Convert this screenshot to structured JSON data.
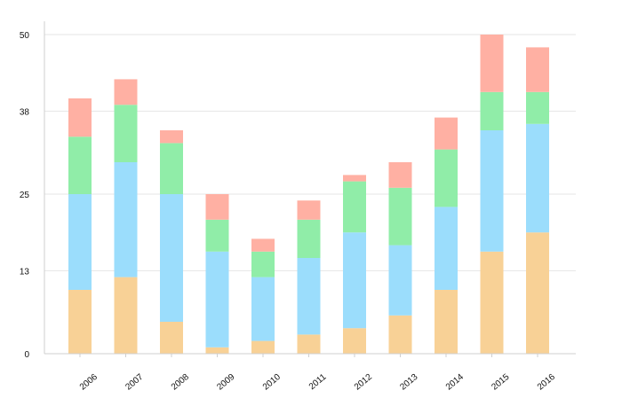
{
  "chart_data": {
    "type": "bar",
    "stacked": true,
    "categories": [
      "2006",
      "2007",
      "2008",
      "2009",
      "2010",
      "2011",
      "2012",
      "2013",
      "2014",
      "2015",
      "2016"
    ],
    "series": [
      {
        "color": "#f8d196",
        "values": [
          10,
          12,
          5,
          1,
          2,
          3,
          4,
          6,
          10,
          16,
          19
        ]
      },
      {
        "color": "#9bddfc",
        "values": [
          15,
          18,
          20,
          15,
          10,
          12,
          15,
          11,
          13,
          19,
          17
        ]
      },
      {
        "color": "#90eda8",
        "values": [
          9,
          9,
          8,
          5,
          4,
          6,
          8,
          9,
          9,
          6,
          5
        ]
      },
      {
        "color": "#ffb0a3",
        "values": [
          6,
          4,
          2,
          4,
          2,
          3,
          1,
          4,
          5,
          9,
          7
        ]
      }
    ],
    "yticks": [
      0,
      13,
      25,
      38,
      50
    ],
    "ylim": [
      0,
      50
    ],
    "grid": true,
    "title": "",
    "xlabel": "",
    "ylabel": ""
  }
}
